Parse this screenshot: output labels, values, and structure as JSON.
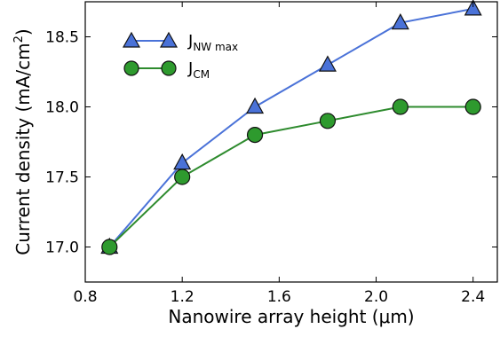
{
  "chart_data": {
    "type": "line",
    "x": [
      0.9,
      1.2,
      1.5,
      1.8,
      2.1,
      2.4
    ],
    "series": [
      {
        "name_main": "J",
        "name_sub": "NW max",
        "marker": "triangle",
        "color": "#4a72d8",
        "line_color": "#4a72d8",
        "values": [
          17.0,
          17.6,
          18.0,
          18.3,
          18.6,
          18.7
        ]
      },
      {
        "name_main": "J",
        "name_sub": "CM",
        "marker": "circle",
        "color": "#2e9a2e",
        "line_color": "#2e8b2e",
        "values": [
          17.0,
          17.5,
          17.8,
          17.9,
          18.0,
          18.0
        ]
      }
    ],
    "xlabel": "Nanowire array height (μm)",
    "ylabel_main": "Current density (mA/cm",
    "ylabel_sup": "2",
    "ylabel_end": ")",
    "xlim": [
      0.8,
      2.5
    ],
    "ylim": [
      16.75,
      18.75
    ],
    "xticks": [
      0.8,
      1.2,
      1.6,
      2.0,
      2.4
    ],
    "xtick_labels": [
      "0.8",
      "1.2",
      "1.6",
      "2.0",
      "2.4"
    ],
    "yticks": [
      17.0,
      17.5,
      18.0,
      18.5
    ],
    "ytick_labels": [
      "17.0",
      "17.5",
      "18.0",
      "18.5"
    ],
    "legend_position": "top-left",
    "grid": false
  }
}
